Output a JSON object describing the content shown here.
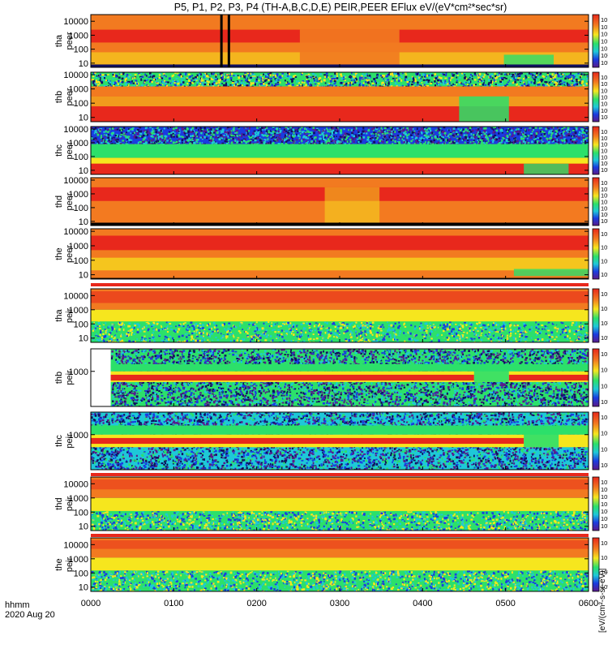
{
  "title": "P5, P1, P2, P3, P4 (TH-A,B,C,D,E) PEIR,PEER EFlux eV/(eV*cm²*sec*sr)",
  "x_unit_label": "hhmm",
  "date_label": "2020 Aug 20",
  "x_ticks": [
    "0000",
    "0100",
    "0200",
    "0300",
    "0400",
    "0500",
    "0600"
  ],
  "colorbar_label": "[eV/(cm²-s-sr-eV)]",
  "colors": {
    "bg": "#ffffff",
    "axis": "#000000",
    "hot": "#e8281c",
    "orange": "#f27a20",
    "yellow": "#f6e61e",
    "green": "#2ce06a",
    "cyan": "#1ec8d8",
    "blue": "#1a3ce0",
    "navy": "#101060",
    "purple": "#5a1a8a"
  },
  "chart_data": [
    {
      "type": "heatmap",
      "name": "tha peer",
      "ylabels": [
        "tha",
        "peer"
      ],
      "ylog": true,
      "ylim": [
        5,
        30000
      ],
      "y_ticks": [
        {
          "v": 10,
          "label": "10"
        },
        {
          "v": 100,
          "label": "100"
        },
        {
          "v": 1000,
          "label": "1000"
        },
        {
          "v": 10000,
          "label": "10000"
        }
      ],
      "cbar_ticks": [
        "10⁸",
        "10⁷",
        "10⁶",
        "10⁵",
        "10⁴",
        "10³",
        "10²"
      ],
      "pattern": "peer-a"
    },
    {
      "type": "heatmap",
      "name": "thb peer",
      "ylabels": [
        "thb",
        "peer"
      ],
      "ylog": true,
      "ylim": [
        5,
        15000
      ],
      "y_ticks": [
        {
          "v": 10,
          "label": "10"
        },
        {
          "v": 100,
          "label": "100"
        },
        {
          "v": 1000,
          "label": "1000"
        },
        {
          "v": 10000,
          "label": "10000"
        }
      ],
      "cbar_ticks": [
        "10⁸",
        "10⁷",
        "10⁶",
        "10⁵",
        "10⁴",
        "10³",
        "10²"
      ],
      "pattern": "peer-b"
    },
    {
      "type": "heatmap",
      "name": "thc peer",
      "ylabels": [
        "thc",
        "peer"
      ],
      "ylog": true,
      "ylim": [
        5,
        15000
      ],
      "y_ticks": [
        {
          "v": 10,
          "label": "10"
        },
        {
          "v": 100,
          "label": "100"
        },
        {
          "v": 1000,
          "label": "1000"
        },
        {
          "v": 10000,
          "label": "10000"
        }
      ],
      "cbar_ticks": [
        "10⁸",
        "10⁷",
        "10⁶",
        "10⁵",
        "10⁴",
        "10³",
        "10²"
      ],
      "pattern": "peer-c"
    },
    {
      "type": "heatmap",
      "name": "thd peer",
      "ylabels": [
        "thd",
        "peer"
      ],
      "ylog": true,
      "ylim": [
        5,
        15000
      ],
      "y_ticks": [
        {
          "v": 10,
          "label": "10"
        },
        {
          "v": 100,
          "label": "100"
        },
        {
          "v": 1000,
          "label": "1000"
        },
        {
          "v": 10000,
          "label": "10000"
        }
      ],
      "cbar_ticks": [
        "10⁸",
        "10⁷",
        "10⁶",
        "10⁵",
        "10⁴",
        "10³",
        "10²"
      ],
      "pattern": "peer-d"
    },
    {
      "type": "heatmap",
      "name": "the peer",
      "ylabels": [
        "the",
        "peer"
      ],
      "ylog": true,
      "ylim": [
        5,
        15000
      ],
      "y_ticks": [
        {
          "v": 10,
          "label": "10"
        },
        {
          "v": 100,
          "label": "100"
        },
        {
          "v": 1000,
          "label": "1000"
        },
        {
          "v": 10000,
          "label": "10000"
        }
      ],
      "cbar_ticks": [
        "10⁸",
        "10⁷",
        "10⁶",
        "10⁵"
      ],
      "pattern": "peer-e"
    },
    {
      "type": "heatmap",
      "name": "tha peir",
      "ylabels": [
        "tha",
        "peir"
      ],
      "ylog": true,
      "ylim": [
        5,
        30000
      ],
      "y_ticks": [
        {
          "v": 10,
          "label": "10"
        },
        {
          "v": 100,
          "label": "100"
        },
        {
          "v": 1000,
          "label": "1000"
        },
        {
          "v": 10000,
          "label": "10000"
        }
      ],
      "cbar_ticks": [
        "10⁶",
        "10⁴",
        "10²",
        "10⁰"
      ],
      "pattern": "peir-a"
    },
    {
      "type": "heatmap",
      "name": "thb peir",
      "ylabels": [
        "thb",
        "peir"
      ],
      "ylog": true,
      "ylim": [
        5,
        30000
      ],
      "y_ticks": [
        {
          "v": 1000,
          "label": "1000"
        }
      ],
      "cbar_ticks": [
        "10⁸",
        "10⁶",
        "10⁴",
        "10²"
      ],
      "pattern": "peir-b"
    },
    {
      "type": "heatmap",
      "name": "thc peir",
      "ylabels": [
        "thc",
        "peir"
      ],
      "ylog": true,
      "ylim": [
        5,
        30000
      ],
      "y_ticks": [
        {
          "v": 1000,
          "label": "1000"
        }
      ],
      "cbar_ticks": [
        "10⁸",
        "10⁶",
        "10⁴",
        "10²"
      ],
      "pattern": "peir-c"
    },
    {
      "type": "heatmap",
      "name": "thd peir",
      "ylabels": [
        "thd",
        "peir"
      ],
      "ylog": true,
      "ylim": [
        5,
        30000
      ],
      "y_ticks": [
        {
          "v": 10,
          "label": "10"
        },
        {
          "v": 100,
          "label": "100"
        },
        {
          "v": 1000,
          "label": "1000"
        },
        {
          "v": 10000,
          "label": "10000"
        }
      ],
      "cbar_ticks": [
        "10⁷",
        "10⁶",
        "10⁵",
        "10⁴",
        "10³",
        "10²",
        "10¹"
      ],
      "pattern": "peir-d"
    },
    {
      "type": "heatmap",
      "name": "the peir",
      "ylabels": [
        "the",
        "peir"
      ],
      "ylog": true,
      "ylim": [
        5,
        30000
      ],
      "y_ticks": [
        {
          "v": 10,
          "label": "10"
        },
        {
          "v": 100,
          "label": "100"
        },
        {
          "v": 1000,
          "label": "1000"
        },
        {
          "v": 10000,
          "label": "10000"
        }
      ],
      "cbar_ticks": [
        "10⁶",
        "10⁴",
        "10²",
        "10⁰"
      ],
      "pattern": "peir-e"
    }
  ]
}
